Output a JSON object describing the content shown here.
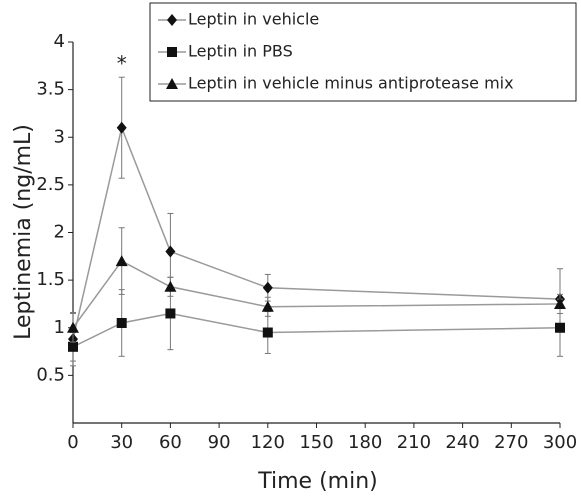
{
  "chart_data": {
    "type": "line",
    "x_label": "Time (min)",
    "y_label": "Leptinemia (ng/mL)",
    "x": [
      0,
      30,
      60,
      120,
      300
    ],
    "series": [
      {
        "name": "Leptin in vehicle",
        "marker": "diamond",
        "color": "#111111",
        "line_color": "#9a9a9a",
        "values": [
          0.88,
          3.1,
          1.8,
          1.42,
          1.3
        ],
        "errors": [
          0.28,
          0.53,
          0.4,
          0.14,
          0.32
        ]
      },
      {
        "name": "Leptin in PBS",
        "marker": "square",
        "color": "#111111",
        "line_color": "#9a9a9a",
        "values": [
          0.8,
          1.05,
          1.15,
          0.95,
          1.0
        ],
        "errors": [
          0.15,
          0.35,
          0.38,
          0.22,
          0.3
        ]
      },
      {
        "name": "Leptin in vehicle minus antiprotease mix",
        "marker": "triangle",
        "color": "#111111",
        "line_color": "#9a9a9a",
        "values": [
          1.0,
          1.7,
          1.43,
          1.22,
          1.25
        ],
        "errors": [
          0.15,
          0.35,
          0.1,
          0.1,
          0.1
        ]
      }
    ],
    "annotations": [
      {
        "text": "*",
        "x": 30
      }
    ],
    "xlim": [
      0,
      300
    ],
    "xticks": [
      0,
      30,
      60,
      90,
      120,
      150,
      180,
      210,
      240,
      270,
      300
    ],
    "ylim": [
      0,
      4
    ],
    "yticks": [
      0.5,
      1,
      1.5,
      2,
      2.5,
      3,
      3.5,
      4
    ],
    "grid": false,
    "legend": "top-right"
  }
}
